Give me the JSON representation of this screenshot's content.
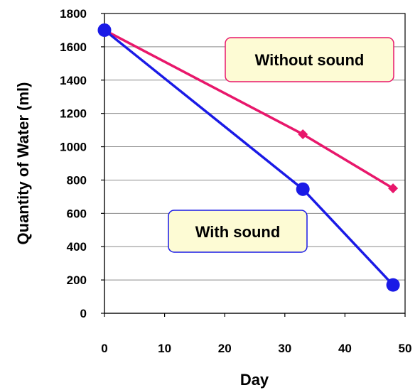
{
  "chart_data": {
    "type": "line",
    "xlabel": "Day",
    "ylabel": "Quantity of Water (ml)",
    "xlim": [
      0,
      50
    ],
    "ylim": [
      0,
      1800
    ],
    "xticks": [
      0,
      10,
      20,
      30,
      40,
      50
    ],
    "yticks": [
      0,
      200,
      400,
      600,
      800,
      1000,
      1200,
      1400,
      1600,
      1800
    ],
    "grid": "horizontal",
    "series": [
      {
        "name": "Without sound",
        "color": "#e8176b",
        "marker": "diamond",
        "x": [
          0,
          33,
          48
        ],
        "y": [
          1700,
          1075,
          750
        ]
      },
      {
        "name": "With sound",
        "color": "#1a1ae6",
        "marker": "circle",
        "x": [
          0,
          33,
          48
        ],
        "y": [
          1700,
          745,
          170
        ]
      }
    ]
  },
  "callouts": {
    "without_sound": {
      "text": "Without sound",
      "border": "#e8176b",
      "fill": "#fdfbd4"
    },
    "with_sound": {
      "text": "With sound",
      "border": "#1a1ae6",
      "fill": "#fdfbd4"
    }
  }
}
